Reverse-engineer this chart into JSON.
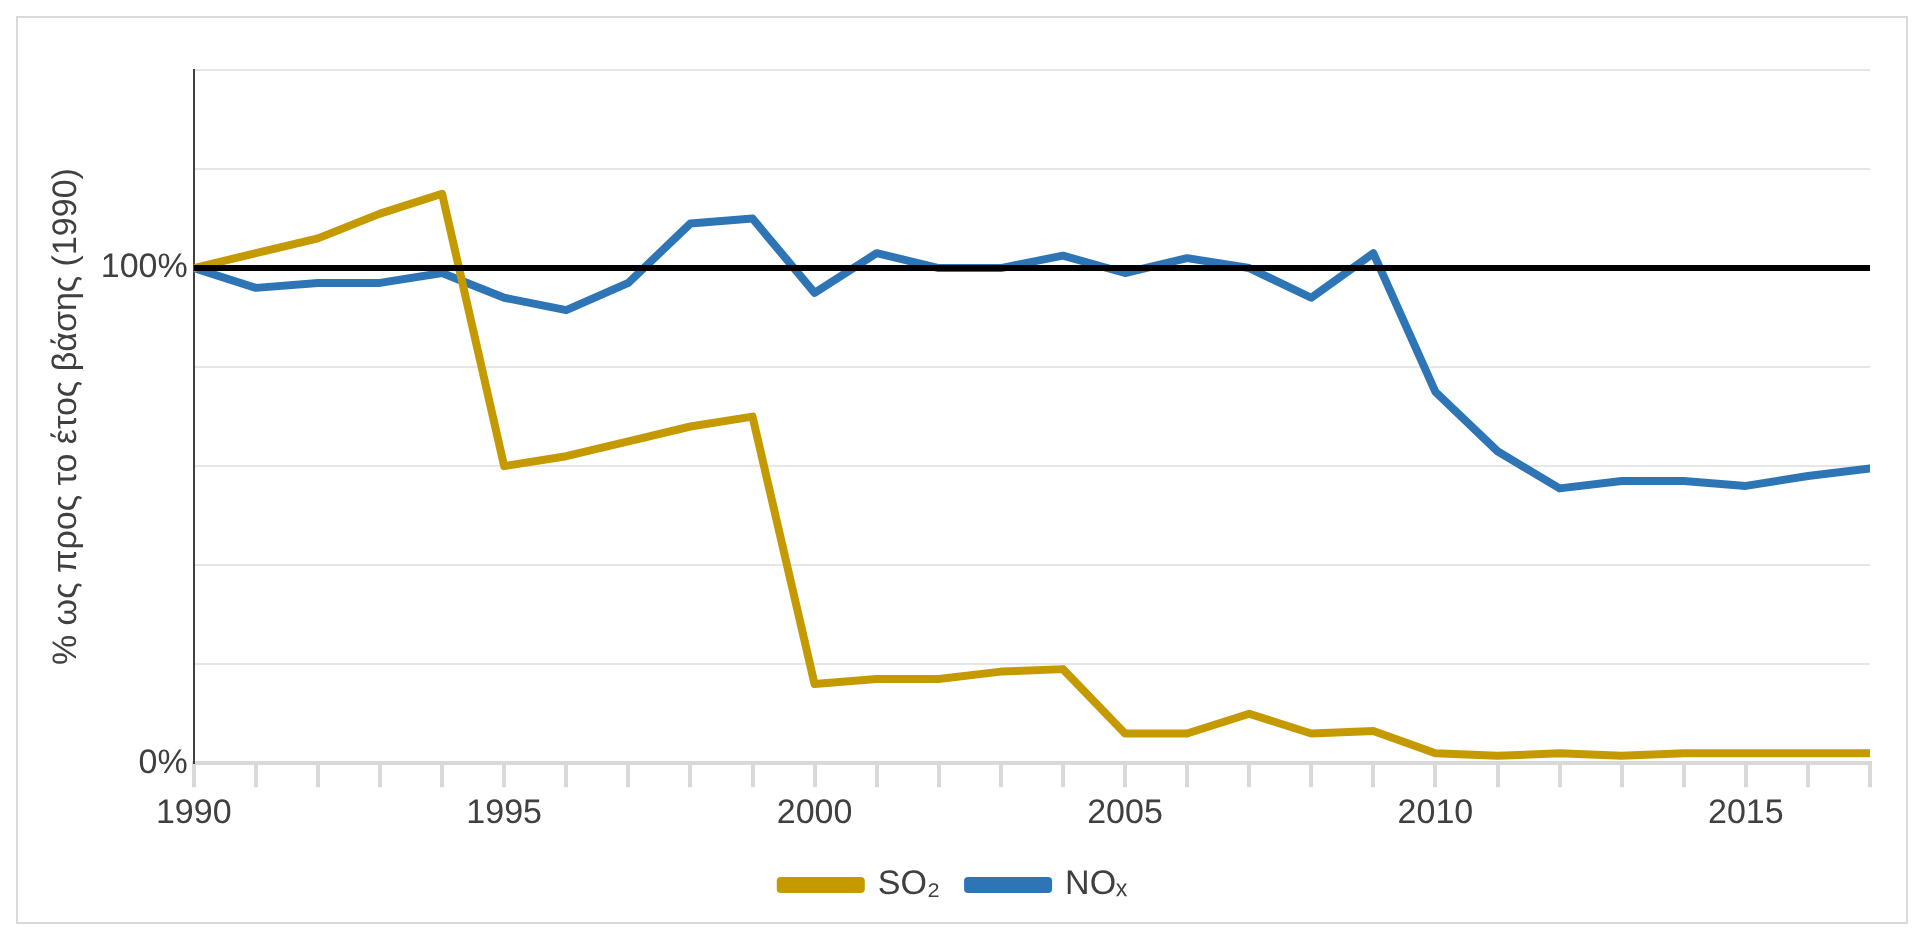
{
  "chart_data": {
    "type": "line",
    "ylabel": "% ως προς το έτος βάσης (1990)",
    "x": [
      1990,
      1991,
      1992,
      1993,
      1994,
      1995,
      1996,
      1997,
      1998,
      1999,
      2000,
      2001,
      2002,
      2003,
      2004,
      2005,
      2006,
      2007,
      2008,
      2009,
      2010,
      2011,
      2012,
      2013,
      2014,
      2015,
      2016,
      2017
    ],
    "series": [
      {
        "name": "SO₂",
        "color": "#c49a00",
        "values": [
          100,
          103,
          106,
          111,
          115,
          60,
          62,
          65,
          68,
          70,
          16,
          17,
          17,
          18.5,
          19,
          6,
          6,
          10,
          6,
          6.5,
          2,
          1.5,
          2,
          1.5,
          2,
          2,
          2,
          2
        ]
      },
      {
        "name": "NOₓ",
        "color": "#2e75b6",
        "values": [
          100,
          96,
          97,
          97,
          99,
          94,
          91.5,
          97,
          109,
          110,
          95,
          103,
          100,
          100,
          102.5,
          99,
          102,
          100,
          94,
          103,
          75,
          63,
          55.5,
          57,
          57,
          56,
          58,
          59.5
        ]
      }
    ],
    "xlim": [
      1990,
      2017
    ],
    "xticks": [
      1990,
      {
        "value": 1991,
        "label": null
      },
      {
        "value": 1992,
        "label": null
      },
      {
        "value": 1993,
        "label": null
      },
      {
        "value": 1994,
        "label": null
      },
      1995,
      {
        "value": 1996,
        "label": null
      },
      {
        "value": 1997,
        "label": null
      },
      {
        "value": 1998,
        "label": null
      },
      {
        "value": 1999,
        "label": null
      },
      2000,
      {
        "value": 2001,
        "label": null
      },
      {
        "value": 2002,
        "label": null
      },
      {
        "value": 2003,
        "label": null
      },
      {
        "value": 2004,
        "label": null
      },
      2005,
      {
        "value": 2006,
        "label": null
      },
      {
        "value": 2007,
        "label": null
      },
      {
        "value": 2008,
        "label": null
      },
      {
        "value": 2009,
        "label": null
      },
      2010,
      {
        "value": 2011,
        "label": null
      },
      {
        "value": 2012,
        "label": null
      },
      {
        "value": 2013,
        "label": null
      },
      {
        "value": 2014,
        "label": null
      },
      2015,
      {
        "value": 2016,
        "label": null
      },
      {
        "value": 2017,
        "label": null
      }
    ],
    "ylim": [
      0,
      140
    ],
    "yticks": [
      {
        "value": 0,
        "label": "0%"
      },
      {
        "value": 20,
        "label": null
      },
      {
        "value": 40,
        "label": null
      },
      {
        "value": 60,
        "label": null
      },
      {
        "value": 80,
        "label": null
      },
      {
        "value": 100,
        "label": "100%"
      },
      {
        "value": 120,
        "label": null
      },
      {
        "value": 140,
        "label": null
      }
    ],
    "ref_lines": [
      {
        "axis": "y",
        "value": 100,
        "color": "#000000"
      }
    ],
    "grid": "y",
    "legend": "bottom",
    "marker": "none",
    "line_style": "solid"
  }
}
